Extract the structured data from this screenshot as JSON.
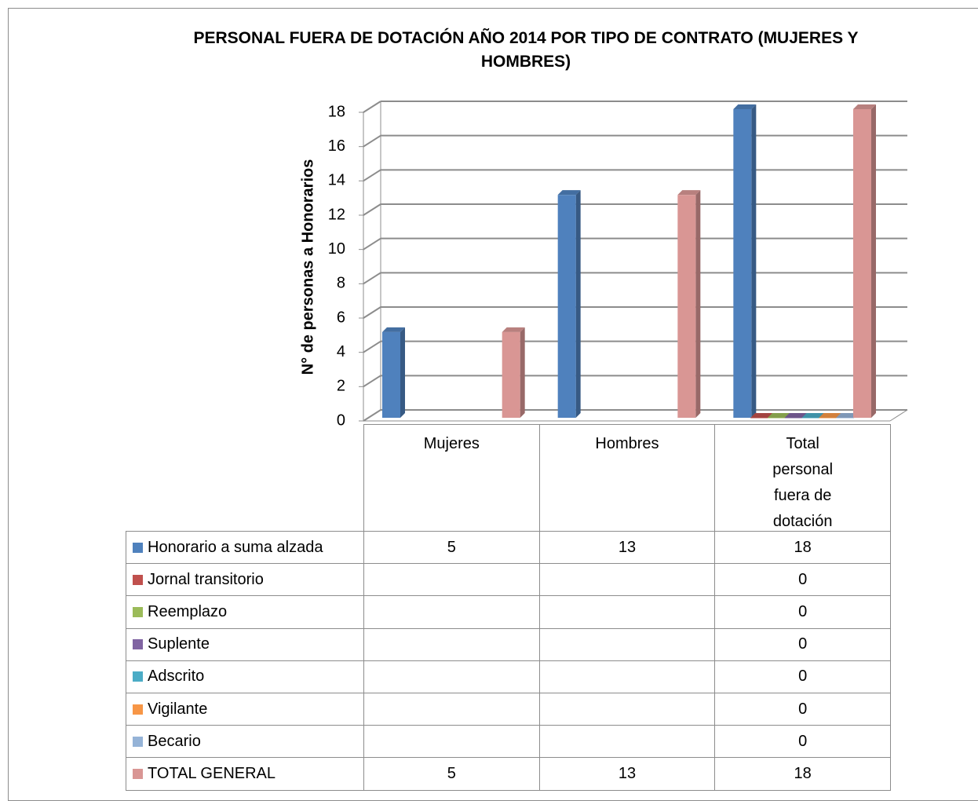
{
  "chart_data": {
    "type": "bar3d",
    "title": "PERSONAL FUERA DE DOTACIÓN AÑO 2014 POR TIPO DE CONTRATO (MUJERES Y HOMBRES)",
    "y_label": "N° de personas a Honorarios",
    "categories": [
      "Mujeres",
      "Hombres",
      "Total personal fuera de dotación"
    ],
    "series": [
      {
        "name": "Honorario a suma alzada",
        "color": "#4f81bd",
        "values": [
          5,
          13,
          18
        ]
      },
      {
        "name": "Jornal transitorio",
        "color": "#c0504d",
        "values": [
          null,
          null,
          0
        ]
      },
      {
        "name": "Reemplazo",
        "color": "#9bbb59",
        "values": [
          null,
          null,
          0
        ]
      },
      {
        "name": "Suplente",
        "color": "#8064a2",
        "values": [
          null,
          null,
          0
        ]
      },
      {
        "name": "Adscrito",
        "color": "#4bacc6",
        "values": [
          null,
          null,
          0
        ]
      },
      {
        "name": "Vigilante",
        "color": "#f79646",
        "values": [
          null,
          null,
          0
        ]
      },
      {
        "name": "Becario",
        "color": "#95b3d7",
        "values": [
          null,
          null,
          0
        ]
      },
      {
        "name": "TOTAL GENERAL",
        "color": "#d99694",
        "values": [
          5,
          13,
          18
        ]
      }
    ],
    "ylim": [
      0,
      18
    ],
    "yticks": [
      0,
      2,
      4,
      6,
      8,
      10,
      12,
      14,
      16,
      18
    ],
    "grid": true,
    "data_table": true
  }
}
